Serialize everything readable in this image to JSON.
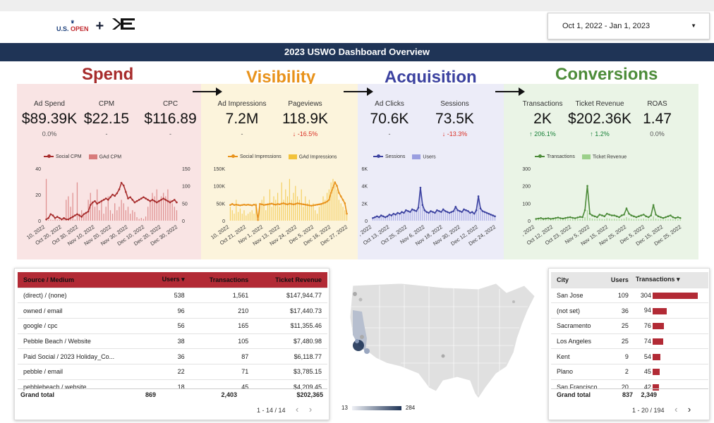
{
  "header": {
    "logo_main": "OPEN",
    "logo_prefix": "U.S.",
    "logo_plus": "+",
    "logo_partner": "KE",
    "date_range": "Oct 1, 2022 - Jan 1, 2023",
    "title": "2023 USWO Dashboard Overview"
  },
  "sections": {
    "spend": {
      "title": "Spend",
      "color": "#a72c2c",
      "bg": "#f9e4e4"
    },
    "visibility": {
      "title": "Visibility",
      "color": "#e8921b",
      "bg": "#fcf4dc"
    },
    "acquisition": {
      "title": "Acquisition",
      "color": "#3c42a0",
      "bg": "#ececf8"
    },
    "conversions": {
      "title": "Conversions",
      "color": "#4d8c3a",
      "bg": "#eaf4e6"
    }
  },
  "metrics": {
    "ad_spend": {
      "label": "Ad Spend",
      "value": "$89.39K",
      "change": "0.0%"
    },
    "cpm": {
      "label": "CPM",
      "value": "$22.15",
      "change": "-"
    },
    "cpc": {
      "label": "CPC",
      "value": "$116.89",
      "change": "-"
    },
    "ad_impressions": {
      "label": "Ad Impressions",
      "value": "7.2M",
      "change": "-"
    },
    "pageviews": {
      "label": "Pageviews",
      "value": "118.9K",
      "change": "↓ -16.5%"
    },
    "ad_clicks": {
      "label": "Ad Clicks",
      "value": "70.6K",
      "change": "-"
    },
    "sessions": {
      "label": "Sessions",
      "value": "73.5K",
      "change": "↓ -13.3%"
    },
    "transactions": {
      "label": "Transactions",
      "value": "2K",
      "change": "↑ 206.1%"
    },
    "ticket_revenue": {
      "label": "Ticket Revenue",
      "value": "$202.36K",
      "change": "↑ 1.2%"
    },
    "roas": {
      "label": "ROAS",
      "value": "1.47",
      "change": "0.0%"
    }
  },
  "chart_data": [
    {
      "type": "bar",
      "series": [
        {
          "name": "Social CPM",
          "color": "#a72c2c"
        },
        {
          "name": "GAd CPM",
          "color": "#d87b7b"
        }
      ],
      "x_ticks": [
        "10, 2022",
        "Oct 20, 2022",
        "Oct 30, 2022",
        "Nov 10, 2022",
        "Nov 20, 2022",
        "Nov 30, 2022",
        "Dec 10, 2022",
        "Dec 20, 2022",
        "Dec 30, 2022"
      ],
      "y_left_ticks": [
        "40",
        "20",
        "0"
      ],
      "y_right_ticks": [
        "150",
        "100",
        "50",
        "0"
      ],
      "ylim_left": [
        0,
        40
      ],
      "ylim_right": [
        0,
        150
      ],
      "line_values": [
        1,
        2,
        5,
        4,
        2,
        3,
        2,
        1,
        2,
        1,
        1,
        2,
        3,
        4,
        5,
        4,
        3,
        5,
        6,
        7,
        12,
        14,
        15,
        13,
        14,
        15,
        16,
        17,
        16,
        18,
        20,
        19,
        21,
        24,
        29,
        27,
        22,
        17,
        18,
        16,
        14,
        15,
        16,
        17,
        18,
        17,
        16,
        15,
        16,
        15,
        14,
        15,
        16,
        17,
        16,
        15,
        14,
        15,
        16,
        14
      ],
      "bar_values": [
        120,
        2,
        3,
        2,
        4,
        3,
        2,
        2,
        5,
        60,
        70,
        40,
        80,
        3,
        110,
        20,
        30,
        15,
        25,
        60,
        80,
        50,
        40,
        90,
        30,
        60,
        20,
        40,
        70,
        30,
        20,
        50,
        30,
        40,
        60,
        50,
        30,
        40,
        20,
        30,
        25,
        10,
        5,
        8,
        5,
        12,
        40,
        60,
        80,
        70,
        90,
        60,
        70,
        80,
        70,
        90,
        60,
        50,
        40,
        30
      ]
    },
    {
      "type": "bar",
      "series": [
        {
          "name": "Social Impressions",
          "color": "#e8921b"
        },
        {
          "name": "GAd Impressions",
          "color": "#f2c23a"
        }
      ],
      "x_ticks": [
        "10, 2022",
        "Oct 21, 2022",
        "Nov 1, 2022",
        "Nov 13, 2022",
        "Nov 24, 2022",
        "Dec 5, 2022",
        "Dec 16, 2022",
        "Dec 27, 2022"
      ],
      "y_ticks": [
        "150K",
        "100K",
        "50K",
        "0"
      ],
      "ylim": [
        0,
        150
      ],
      "line_values": [
        45,
        48,
        45,
        46,
        45,
        44,
        45,
        46,
        45,
        46,
        45,
        44,
        46,
        45,
        2,
        48,
        47,
        45,
        46,
        47,
        48,
        49,
        47,
        46,
        48,
        47,
        49,
        50,
        48,
        47,
        49,
        48,
        47,
        48,
        50,
        49,
        48,
        47,
        46,
        45,
        44,
        43,
        44,
        45,
        46,
        47,
        48,
        50,
        52,
        55,
        60,
        80,
        95,
        110,
        100,
        80,
        70,
        60,
        50,
        20
      ],
      "bar_values": [
        40,
        30,
        20,
        60,
        25,
        35,
        20,
        30,
        15,
        20,
        25,
        30,
        20,
        50,
        10,
        40,
        60,
        70,
        30,
        50,
        90,
        40,
        70,
        60,
        80,
        40,
        110,
        60,
        90,
        70,
        120,
        60,
        80,
        100,
        70,
        60,
        90,
        40,
        70,
        50,
        60,
        40,
        50,
        30,
        20,
        40,
        50,
        70,
        60,
        80,
        90,
        110,
        120,
        100,
        90,
        60,
        50,
        40,
        30,
        20
      ]
    },
    {
      "type": "bar",
      "series": [
        {
          "name": "Sessions",
          "color": "#3c42a0"
        },
        {
          "name": "Users",
          "color": "#9a9ee0"
        }
      ],
      "x_ticks": [
        ", 2022",
        "Oct 13, 2022",
        "Oct 25, 2022",
        "Nov 6, 2022",
        "Nov 18, 2022",
        "Nov 30, 2022",
        "Dec 12, 2022",
        "Dec 24, 2022"
      ],
      "y_ticks": [
        "6K",
        "4K",
        "2K",
        "0"
      ],
      "ylim": [
        0,
        6
      ],
      "line_values": [
        0.3,
        0.4,
        0.5,
        0.4,
        0.6,
        0.5,
        0.4,
        0.5,
        0.7,
        0.6,
        0.8,
        0.7,
        0.9,
        0.8,
        1.0,
        0.9,
        1.2,
        1.1,
        1.0,
        1.3,
        1.2,
        1.1,
        1.5,
        3.8,
        1.8,
        1.2,
        1.0,
        0.9,
        1.1,
        1.0,
        0.9,
        1.2,
        1.1,
        1.0,
        1.3,
        1.1,
        1.0,
        0.9,
        1.0,
        1.1,
        1.6,
        1.2,
        1.1,
        1.0,
        1.3,
        1.2,
        1.1,
        0.9,
        1.0,
        0.8,
        1.2,
        2.8,
        1.4,
        1.1,
        1.0,
        0.9,
        0.8,
        0.7,
        0.6,
        0.5
      ],
      "bar_values": [
        0.3,
        0.4,
        0.5,
        0.4,
        0.6,
        0.5,
        0.4,
        0.5,
        0.7,
        0.6,
        0.8,
        0.7,
        0.9,
        0.8,
        1.0,
        0.9,
        1.2,
        1.1,
        1.0,
        1.3,
        1.2,
        1.1,
        1.5,
        3.8,
        1.8,
        1.2,
        1.0,
        0.9,
        1.1,
        1.0,
        0.9,
        1.2,
        1.1,
        1.0,
        1.3,
        1.1,
        1.0,
        0.9,
        1.0,
        1.1,
        1.6,
        1.2,
        1.1,
        1.0,
        1.3,
        1.2,
        1.1,
        0.9,
        1.0,
        0.8,
        1.2,
        2.8,
        1.4,
        1.1,
        1.0,
        0.9,
        0.8,
        0.7,
        0.6,
        0.5
      ]
    },
    {
      "type": "bar",
      "series": [
        {
          "name": "Transactions",
          "color": "#4d8c3a"
        },
        {
          "name": "Ticket Revenue",
          "color": "#9bd08a"
        }
      ],
      "x_ticks": [
        ", 2022",
        "Oct 12, 2022",
        "Oct 23, 2022",
        "Nov 5, 2022",
        "Nov 15, 2022",
        "Nov 25, 2022",
        "Dec 5, 2022",
        "Dec 15, 2022",
        "Dec 25, 2022"
      ],
      "y_ticks": [
        "300",
        "200",
        "100",
        "0"
      ],
      "ylim": [
        0,
        300
      ],
      "line_values": [
        10,
        12,
        15,
        10,
        12,
        14,
        10,
        12,
        15,
        18,
        14,
        12,
        15,
        18,
        20,
        16,
        14,
        18,
        22,
        20,
        60,
        200,
        40,
        30,
        25,
        20,
        35,
        30,
        25,
        40,
        35,
        30,
        30,
        25,
        20,
        30,
        35,
        70,
        40,
        30,
        25,
        20,
        25,
        30,
        35,
        25,
        20,
        30,
        90,
        35,
        25,
        20,
        15,
        20,
        25,
        30,
        20,
        15,
        20,
        15
      ],
      "bar_values": [
        5,
        6,
        8,
        5,
        6,
        7,
        5,
        6,
        8,
        9,
        7,
        6,
        8,
        9,
        10,
        8,
        7,
        9,
        11,
        10,
        20,
        60,
        15,
        12,
        10,
        8,
        12,
        10,
        9,
        14,
        12,
        10,
        11,
        9,
        8,
        10,
        12,
        20,
        14,
        11,
        9,
        8,
        9,
        10,
        12,
        9,
        8,
        10,
        25,
        12,
        9,
        8,
        6,
        8,
        9,
        10,
        8,
        6,
        8,
        6
      ]
    }
  ],
  "source_table": {
    "headers": [
      "Source / Medium",
      "Users ▾",
      "Transactions",
      "Ticket Revenue"
    ],
    "rows": [
      [
        "(direct) / (none)",
        "538",
        "1,561",
        "$147,944.77"
      ],
      [
        "owned / email",
        "96",
        "210",
        "$17,440.73"
      ],
      [
        "google / cpc",
        "56",
        "165",
        "$11,355.46"
      ],
      [
        "Pebble Beach / Website",
        "38",
        "105",
        "$7,480.98"
      ],
      [
        "Paid Social / 2023 Holiday_Co...",
        "36",
        "87",
        "$6,118.77"
      ],
      [
        "pebble / email",
        "22",
        "71",
        "$3,785.15"
      ],
      [
        "pebblebeach / website",
        "18",
        "45",
        "$4,209.45"
      ]
    ],
    "total": [
      "Grand total",
      "869",
      "2,403",
      "$202,365"
    ],
    "pager": "1 - 14 / 14"
  },
  "map": {
    "min": "13",
    "max": "284"
  },
  "city_table": {
    "headers": [
      "City",
      "Users",
      "Transactions ▾"
    ],
    "rows": [
      {
        "city": "San Jose",
        "users": "109",
        "transactions": "304",
        "frac": 1.0
      },
      {
        "city": "(not set)",
        "users": "36",
        "transactions": "94",
        "frac": 0.31
      },
      {
        "city": "Sacramento",
        "users": "25",
        "transactions": "76",
        "frac": 0.25
      },
      {
        "city": "Los Angeles",
        "users": "25",
        "transactions": "74",
        "frac": 0.24
      },
      {
        "city": "Kent",
        "users": "9",
        "transactions": "54",
        "frac": 0.18
      },
      {
        "city": "Plano",
        "users": "2",
        "transactions": "45",
        "frac": 0.15
      },
      {
        "city": "San Francisco",
        "users": "20",
        "transactions": "42",
        "frac": 0.14
      }
    ],
    "total": [
      "Grand total",
      "837",
      "2,349"
    ],
    "pager": "1 - 20 / 194"
  }
}
